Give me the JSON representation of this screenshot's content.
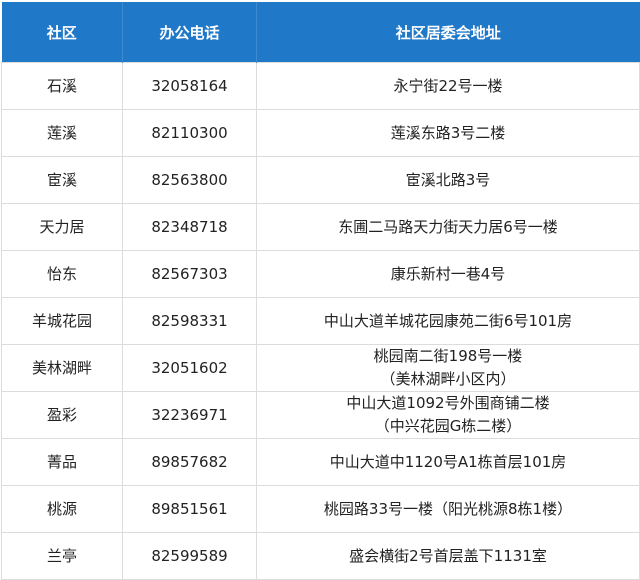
{
  "header": {
    "col1": "社区",
    "col2": "办公电话",
    "col3": "社区居委会地址"
  },
  "colors": {
    "header_bg": "#1f78c8",
    "header_text": "#ffffff",
    "border": "#dcdcdc"
  },
  "rows": [
    {
      "community": "石溪",
      "phone": "32058164",
      "address": [
        "永宁街22号一楼"
      ]
    },
    {
      "community": "莲溪",
      "phone": "82110300",
      "address": [
        "莲溪东路3号二楼"
      ]
    },
    {
      "community": "宦溪",
      "phone": "82563800",
      "address": [
        "宦溪北路3号"
      ]
    },
    {
      "community": "天力居",
      "phone": "82348718",
      "address": [
        "东圃二马路天力街天力居6号一楼"
      ]
    },
    {
      "community": "怡东",
      "phone": "82567303",
      "address": [
        "康乐新村一巷4号"
      ]
    },
    {
      "community": "羊城花园",
      "phone": "82598331",
      "address": [
        "中山大道羊城花园康苑二街6号101房"
      ]
    },
    {
      "community": "美林湖畔",
      "phone": "32051602",
      "address": [
        "桃园南二街198号一楼",
        "（美林湖畔小区内）"
      ]
    },
    {
      "community": "盈彩",
      "phone": "32236971",
      "address": [
        "中山大道1092号外围商铺二楼",
        "（中兴花园G栋二楼）"
      ]
    },
    {
      "community": "菁品",
      "phone": "89857682",
      "address": [
        "中山大道中1120号A1栋首层101房"
      ]
    },
    {
      "community": "桃源",
      "phone": "89851561",
      "address": [
        "桃园路33号一楼（阳光桃源8栋1楼）"
      ]
    },
    {
      "community": "兰亭",
      "phone": "82599589",
      "address": [
        "盛会横街2号首层盖下1131室"
      ]
    }
  ]
}
